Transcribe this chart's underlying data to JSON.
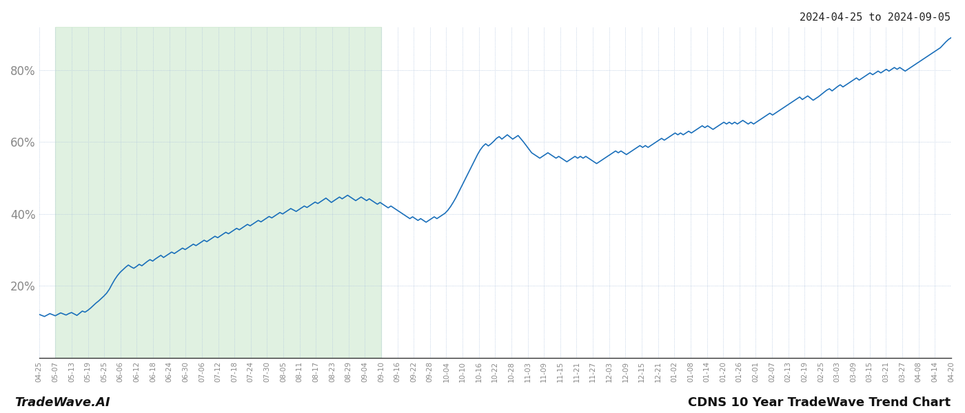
{
  "title_top_right": "2024-04-25 to 2024-09-05",
  "footer_left": "TradeWave.AI",
  "footer_right": "CDNS 10 Year TradeWave Trend Chart",
  "line_color": "#1a6fba",
  "line_width": 1.2,
  "shaded_color": "#c8e6c9",
  "shaded_alpha": 0.55,
  "grid_color": "#b0c4de",
  "grid_style": ":",
  "background_color": "#ffffff",
  "yticks": [
    20,
    40,
    60,
    80
  ],
  "ylim": [
    0,
    92
  ],
  "x_tick_labels": [
    "04-25",
    "05-07",
    "05-13",
    "05-19",
    "05-25",
    "06-06",
    "06-12",
    "06-18",
    "06-24",
    "06-30",
    "07-06",
    "07-12",
    "07-18",
    "07-24",
    "07-30",
    "08-05",
    "08-11",
    "08-17",
    "08-23",
    "08-29",
    "09-04",
    "09-10",
    "09-16",
    "09-22",
    "09-28",
    "10-04",
    "10-10",
    "10-16",
    "10-22",
    "10-28",
    "11-03",
    "11-09",
    "11-15",
    "11-21",
    "11-27",
    "12-03",
    "12-09",
    "12-15",
    "12-21",
    "01-02",
    "01-08",
    "01-14",
    "01-20",
    "01-26",
    "02-01",
    "02-07",
    "02-13",
    "02-19",
    "02-25",
    "03-03",
    "03-09",
    "03-15",
    "03-21",
    "03-27",
    "04-08",
    "04-14",
    "04-20"
  ],
  "shaded_start_label": "05-07",
  "shaded_end_label": "09-10",
  "trend_values": [
    12.1,
    11.8,
    11.5,
    11.9,
    12.3,
    12.0,
    11.7,
    12.1,
    12.5,
    12.2,
    11.9,
    12.3,
    12.6,
    12.2,
    11.8,
    12.4,
    13.0,
    12.7,
    13.2,
    13.8,
    14.5,
    15.2,
    15.8,
    16.5,
    17.2,
    18.0,
    19.1,
    20.5,
    21.8,
    22.9,
    23.8,
    24.5,
    25.2,
    25.8,
    25.3,
    24.9,
    25.4,
    26.0,
    25.6,
    26.2,
    26.8,
    27.3,
    26.9,
    27.5,
    28.0,
    28.5,
    27.9,
    28.4,
    28.9,
    29.4,
    29.0,
    29.5,
    30.0,
    30.5,
    30.1,
    30.6,
    31.1,
    31.6,
    31.2,
    31.7,
    32.2,
    32.7,
    32.3,
    32.8,
    33.3,
    33.8,
    33.4,
    33.9,
    34.4,
    34.9,
    34.5,
    35.0,
    35.5,
    36.0,
    35.6,
    36.1,
    36.6,
    37.1,
    36.7,
    37.2,
    37.7,
    38.2,
    37.8,
    38.3,
    38.8,
    39.3,
    38.9,
    39.4,
    39.9,
    40.4,
    40.0,
    40.5,
    41.0,
    41.5,
    41.1,
    40.7,
    41.2,
    41.7,
    42.2,
    41.8,
    42.3,
    42.8,
    43.3,
    42.9,
    43.4,
    43.9,
    44.4,
    43.8,
    43.2,
    43.7,
    44.2,
    44.7,
    44.2,
    44.7,
    45.2,
    44.7,
    44.2,
    43.7,
    44.2,
    44.7,
    44.2,
    43.7,
    44.2,
    43.7,
    43.2,
    42.7,
    43.2,
    42.7,
    42.2,
    41.7,
    42.2,
    41.7,
    41.2,
    40.7,
    40.2,
    39.7,
    39.2,
    38.7,
    39.2,
    38.7,
    38.2,
    38.7,
    38.2,
    37.7,
    38.2,
    38.7,
    39.2,
    38.7,
    39.2,
    39.7,
    40.2,
    41.0,
    42.0,
    43.2,
    44.5,
    46.0,
    47.5,
    49.0,
    50.5,
    52.0,
    53.5,
    55.0,
    56.5,
    57.8,
    58.8,
    59.5,
    58.9,
    59.5,
    60.2,
    61.0,
    61.5,
    60.8,
    61.4,
    62.0,
    61.4,
    60.8,
    61.3,
    61.8,
    60.9,
    60.0,
    59.0,
    58.0,
    57.0,
    56.5,
    56.0,
    55.5,
    56.0,
    56.5,
    57.0,
    56.5,
    56.0,
    55.5,
    56.0,
    55.5,
    55.0,
    54.5,
    55.0,
    55.5,
    56.0,
    55.5,
    56.0,
    55.5,
    56.0,
    55.5,
    55.0,
    54.5,
    54.0,
    54.5,
    55.0,
    55.5,
    56.0,
    56.5,
    57.0,
    57.5,
    57.0,
    57.5,
    57.0,
    56.5,
    57.0,
    57.5,
    58.0,
    58.5,
    59.0,
    58.5,
    59.0,
    58.5,
    59.0,
    59.5,
    60.0,
    60.5,
    61.0,
    60.5,
    61.0,
    61.5,
    62.0,
    62.5,
    62.0,
    62.5,
    62.0,
    62.5,
    63.0,
    62.5,
    63.0,
    63.5,
    64.0,
    64.5,
    64.0,
    64.5,
    64.0,
    63.5,
    64.0,
    64.5,
    65.0,
    65.5,
    65.0,
    65.5,
    65.0,
    65.5,
    65.0,
    65.5,
    66.0,
    65.5,
    65.0,
    65.5,
    65.0,
    65.5,
    66.0,
    66.5,
    67.0,
    67.5,
    68.0,
    67.5,
    68.0,
    68.5,
    69.0,
    69.5,
    70.0,
    70.5,
    71.0,
    71.5,
    72.0,
    72.5,
    71.8,
    72.3,
    72.8,
    72.2,
    71.6,
    72.1,
    72.6,
    73.2,
    73.8,
    74.4,
    74.8,
    74.2,
    74.8,
    75.4,
    75.9,
    75.3,
    75.8,
    76.3,
    76.8,
    77.3,
    77.8,
    77.2,
    77.7,
    78.2,
    78.7,
    79.2,
    78.7,
    79.2,
    79.7,
    79.2,
    79.7,
    80.2,
    79.7,
    80.2,
    80.7,
    80.2,
    80.7,
    80.2,
    79.7,
    80.2,
    80.7,
    81.2,
    81.7,
    82.2,
    82.7,
    83.2,
    83.7,
    84.2,
    84.7,
    85.2,
    85.7,
    86.2,
    87.0,
    87.8,
    88.5,
    89.0
  ]
}
